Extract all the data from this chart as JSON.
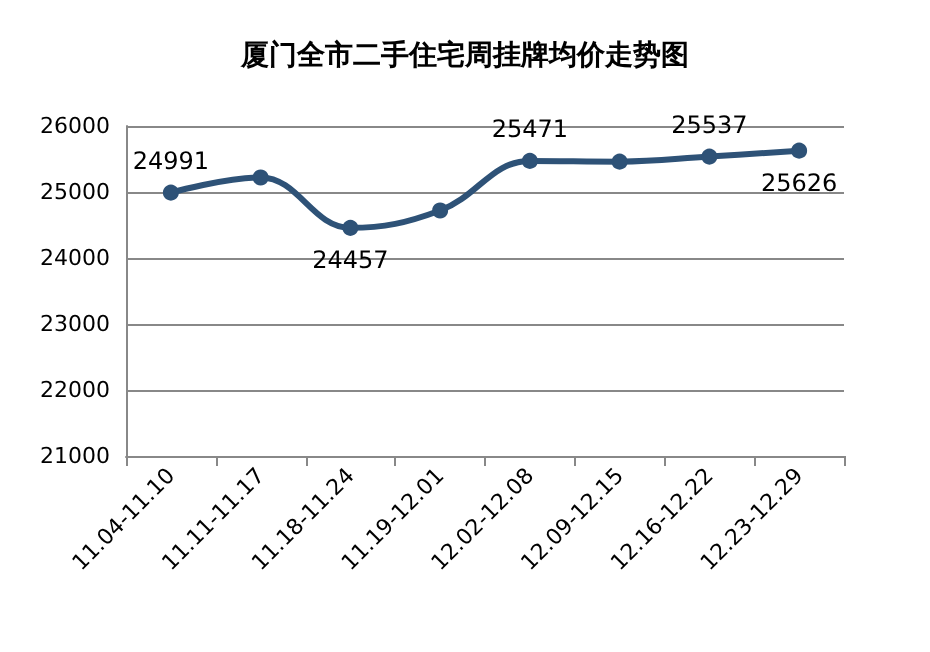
{
  "chart_data": {
    "type": "line",
    "title": "厦门全市二手住宅周挂牌均价走势图",
    "categories": [
      "11.04-11.10",
      "11.11-11.17",
      "11.18-11.24",
      "11.19-12.01",
      "12.02-12.08",
      "12.09-12.15",
      "12.16-12.22",
      "12.23-12.29"
    ],
    "series": [
      {
        "color": "#2e5277",
        "values": [
          24991,
          25220,
          24457,
          24720,
          25471,
          25460,
          25537,
          25626
        ],
        "value_labels": [
          "24991",
          null,
          "24457",
          null,
          "25471",
          null,
          "25537",
          "25626"
        ]
      }
    ],
    "ylim": [
      21000,
      26000
    ],
    "yticks": [
      21000,
      22000,
      23000,
      24000,
      25000,
      26000
    ],
    "grid": "y",
    "marker": "circle",
    "line_style": "solid"
  }
}
